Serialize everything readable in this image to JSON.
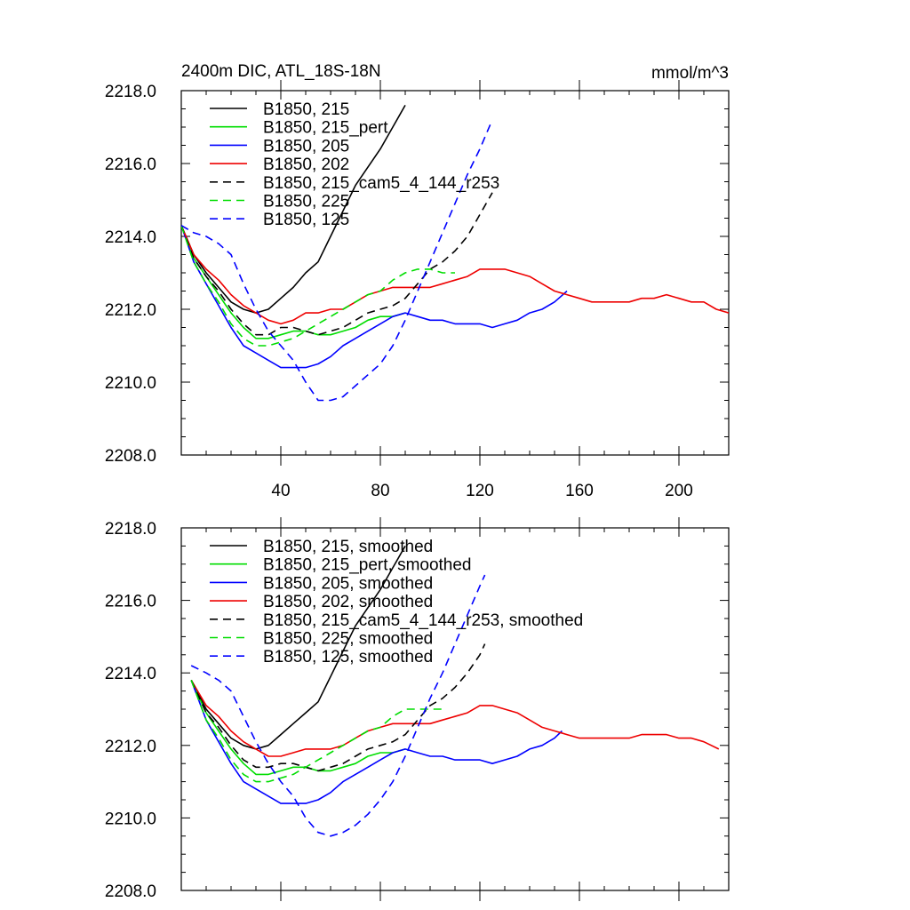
{
  "chart_data": [
    {
      "type": "line",
      "title": "2400m DIC, ATL_18S-18N",
      "units": "mmol/m^3",
      "xlim": [
        0,
        220
      ],
      "ylim": [
        2208,
        2218
      ],
      "x_ticks": [
        "40",
        "80",
        "120",
        "160",
        "200"
      ],
      "y_ticks": [
        "2208.0",
        "2210.0",
        "2212.0",
        "2214.0",
        "2216.0",
        "2218.0"
      ],
      "grid": false,
      "legend_position": "top-left",
      "series": [
        {
          "name": "B1850, 215",
          "color": "#000000",
          "dash": "solid",
          "x": [
            0,
            5,
            10,
            15,
            20,
            25,
            30,
            35,
            40,
            45,
            50,
            55,
            60,
            65,
            70,
            75,
            80,
            85,
            90
          ],
          "y": [
            2214.3,
            2213.5,
            2213.0,
            2212.6,
            2212.2,
            2212.0,
            2211.9,
            2212.0,
            2212.3,
            2212.6,
            2213.0,
            2213.3,
            2214.0,
            2214.7,
            2215.4,
            2215.9,
            2216.4,
            2217.0,
            2217.6
          ]
        },
        {
          "name": "B1850, 215_pert",
          "color": "#00dd00",
          "dash": "solid",
          "x": [
            0,
            5,
            10,
            15,
            20,
            25,
            30,
            35,
            40,
            45,
            50,
            55,
            60,
            65,
            70,
            75,
            80,
            85,
            90
          ],
          "y": [
            2214.3,
            2213.4,
            2212.9,
            2212.4,
            2211.9,
            2211.5,
            2211.2,
            2211.2,
            2211.3,
            2211.4,
            2211.4,
            2211.3,
            2211.3,
            2211.4,
            2211.5,
            2211.7,
            2211.8,
            2211.8,
            2211.9
          ]
        },
        {
          "name": "B1850, 205",
          "color": "#0000ff",
          "dash": "solid",
          "x": [
            0,
            5,
            10,
            15,
            20,
            25,
            30,
            35,
            40,
            45,
            50,
            55,
            60,
            65,
            70,
            75,
            80,
            85,
            90,
            95,
            100,
            105,
            110,
            115,
            120,
            125,
            130,
            135,
            140,
            145,
            150,
            155
          ],
          "y": [
            2214.3,
            2213.3,
            2212.7,
            2212.1,
            2211.5,
            2211.0,
            2210.8,
            2210.6,
            2210.4,
            2210.4,
            2210.4,
            2210.5,
            2210.7,
            2211.0,
            2211.2,
            2211.4,
            2211.6,
            2211.8,
            2211.9,
            2211.8,
            2211.7,
            2211.7,
            2211.6,
            2211.6,
            2211.6,
            2211.5,
            2211.6,
            2211.7,
            2211.9,
            2212.0,
            2212.2,
            2212.5
          ]
        },
        {
          "name": "B1850, 202",
          "color": "#ee0000",
          "dash": "solid",
          "x": [
            0,
            5,
            10,
            15,
            20,
            25,
            30,
            35,
            40,
            45,
            50,
            55,
            60,
            65,
            70,
            75,
            80,
            85,
            90,
            95,
            100,
            105,
            110,
            115,
            120,
            125,
            130,
            135,
            140,
            145,
            150,
            155,
            160,
            165,
            170,
            175,
            180,
            185,
            190,
            195,
            200,
            205,
            210,
            215,
            220
          ],
          "y": [
            2214.3,
            2213.5,
            2213.1,
            2212.8,
            2212.4,
            2212.1,
            2211.9,
            2211.7,
            2211.6,
            2211.7,
            2211.9,
            2211.9,
            2212.0,
            2212.0,
            2212.2,
            2212.4,
            2212.5,
            2212.6,
            2212.6,
            2212.6,
            2212.6,
            2212.7,
            2212.8,
            2212.9,
            2213.1,
            2213.1,
            2213.1,
            2213.0,
            2212.9,
            2212.7,
            2212.5,
            2212.4,
            2212.3,
            2212.2,
            2212.2,
            2212.2,
            2212.2,
            2212.3,
            2212.3,
            2212.4,
            2212.3,
            2212.2,
            2212.2,
            2212.0,
            2211.9
          ]
        },
        {
          "name": "B1850, 215_cam5_4_144_r253",
          "color": "#000000",
          "dash": "dashed",
          "x": [
            0,
            5,
            10,
            15,
            20,
            25,
            30,
            35,
            40,
            45,
            50,
            55,
            60,
            65,
            70,
            75,
            80,
            85,
            90,
            95,
            100,
            105,
            110,
            115,
            120,
            125
          ],
          "y": [
            2214.3,
            2213.4,
            2212.9,
            2212.5,
            2212.0,
            2211.6,
            2211.3,
            2211.3,
            2211.5,
            2211.5,
            2211.4,
            2211.3,
            2211.4,
            2211.5,
            2211.7,
            2211.9,
            2212.0,
            2212.1,
            2212.3,
            2212.7,
            2213.1,
            2213.3,
            2213.6,
            2214.0,
            2214.6,
            2215.2
          ]
        },
        {
          "name": "B1850, 225",
          "color": "#00dd00",
          "dash": "dashed",
          "x": [
            0,
            5,
            10,
            15,
            20,
            25,
            30,
            35,
            40,
            45,
            50,
            55,
            60,
            65,
            70,
            75,
            80,
            85,
            90,
            95,
            100,
            105,
            110
          ],
          "y": [
            2214.3,
            2213.3,
            2212.7,
            2212.2,
            2211.6,
            2211.2,
            2211.0,
            2211.0,
            2211.1,
            2211.2,
            2211.4,
            2211.6,
            2211.8,
            2212.0,
            2212.2,
            2212.4,
            2212.5,
            2212.8,
            2213.0,
            2213.1,
            2213.1,
            2213.0,
            2213.0
          ]
        },
        {
          "name": "B1850, 125",
          "color": "#0000ff",
          "dash": "dashed",
          "x": [
            0,
            5,
            10,
            15,
            20,
            25,
            30,
            35,
            40,
            45,
            50,
            55,
            60,
            65,
            70,
            75,
            80,
            85,
            90,
            95,
            100,
            105,
            110,
            115,
            120,
            125
          ],
          "y": [
            2214.3,
            2214.1,
            2214.0,
            2213.8,
            2213.5,
            2212.7,
            2212.0,
            2211.4,
            2211.0,
            2210.6,
            2210.0,
            2209.5,
            2209.5,
            2209.6,
            2209.9,
            2210.2,
            2210.5,
            2211.0,
            2211.7,
            2212.5,
            2213.3,
            2214.1,
            2214.9,
            2215.7,
            2216.4,
            2217.2
          ]
        }
      ]
    },
    {
      "type": "line",
      "title": "",
      "units": "",
      "xlim": [
        0,
        220
      ],
      "ylim": [
        2208,
        2218
      ],
      "x_ticks": [],
      "y_ticks": [
        "2208.0",
        "2210.0",
        "2212.0",
        "2214.0",
        "2216.0",
        "2218.0"
      ],
      "grid": false,
      "legend_position": "top-left",
      "series": [
        {
          "name": "B1850, 215, smoothed",
          "color": "#000000",
          "dash": "solid",
          "x": [
            4,
            10,
            15,
            20,
            25,
            30,
            35,
            40,
            45,
            50,
            55,
            60,
            65,
            70,
            75,
            80,
            85,
            90
          ],
          "y": [
            2213.8,
            2213.0,
            2212.6,
            2212.2,
            2212.0,
            2211.9,
            2212.0,
            2212.3,
            2212.6,
            2212.9,
            2213.2,
            2213.9,
            2214.6,
            2215.3,
            2215.8,
            2216.3,
            2216.9,
            2217.5
          ]
        },
        {
          "name": "B1850, 215_pert, smoothed",
          "color": "#00dd00",
          "dash": "solid",
          "x": [
            4,
            10,
            15,
            20,
            25,
            30,
            35,
            40,
            45,
            50,
            55,
            60,
            65,
            70,
            75,
            80,
            85,
            90
          ],
          "y": [
            2213.8,
            2212.9,
            2212.4,
            2211.9,
            2211.5,
            2211.2,
            2211.2,
            2211.3,
            2211.4,
            2211.4,
            2211.3,
            2211.3,
            2211.4,
            2211.5,
            2211.7,
            2211.8,
            2211.8,
            2211.9
          ]
        },
        {
          "name": "B1850, 205, smoothed",
          "color": "#0000ff",
          "dash": "solid",
          "x": [
            4,
            10,
            15,
            20,
            25,
            30,
            35,
            40,
            45,
            50,
            55,
            60,
            65,
            70,
            75,
            80,
            85,
            90,
            95,
            100,
            105,
            110,
            115,
            120,
            125,
            130,
            135,
            140,
            145,
            150,
            153
          ],
          "y": [
            2213.8,
            2212.7,
            2212.1,
            2211.5,
            2211.0,
            2210.8,
            2210.6,
            2210.4,
            2210.4,
            2210.4,
            2210.5,
            2210.7,
            2211.0,
            2211.2,
            2211.4,
            2211.6,
            2211.8,
            2211.9,
            2211.8,
            2211.7,
            2211.7,
            2211.6,
            2211.6,
            2211.6,
            2211.5,
            2211.6,
            2211.7,
            2211.9,
            2212.0,
            2212.2,
            2212.4
          ]
        },
        {
          "name": "B1850, 202, smoothed",
          "color": "#ee0000",
          "dash": "solid",
          "x": [
            4,
            10,
            15,
            20,
            25,
            30,
            35,
            40,
            45,
            50,
            55,
            60,
            65,
            70,
            75,
            80,
            85,
            90,
            95,
            100,
            105,
            110,
            115,
            120,
            125,
            130,
            135,
            140,
            145,
            150,
            155,
            160,
            165,
            170,
            175,
            180,
            185,
            190,
            195,
            200,
            205,
            210,
            216
          ],
          "y": [
            2213.8,
            2213.1,
            2212.8,
            2212.4,
            2212.1,
            2211.9,
            2211.7,
            2211.7,
            2211.8,
            2211.9,
            2211.9,
            2211.9,
            2212.0,
            2212.2,
            2212.4,
            2212.5,
            2212.6,
            2212.6,
            2212.6,
            2212.6,
            2212.7,
            2212.8,
            2212.9,
            2213.1,
            2213.1,
            2213.0,
            2212.9,
            2212.7,
            2212.5,
            2212.4,
            2212.3,
            2212.2,
            2212.2,
            2212.2,
            2212.2,
            2212.2,
            2212.3,
            2212.3,
            2212.3,
            2212.2,
            2212.2,
            2212.1,
            2211.9
          ]
        },
        {
          "name": "B1850, 215_cam5_4_144_r253, smoothed",
          "color": "#000000",
          "dash": "dashed",
          "x": [
            4,
            10,
            15,
            20,
            25,
            30,
            35,
            40,
            45,
            50,
            55,
            60,
            65,
            70,
            75,
            80,
            85,
            90,
            95,
            100,
            105,
            110,
            115,
            120,
            122
          ],
          "y": [
            2213.8,
            2212.9,
            2212.5,
            2212.0,
            2211.6,
            2211.4,
            2211.4,
            2211.5,
            2211.5,
            2211.4,
            2211.3,
            2211.4,
            2211.5,
            2211.7,
            2211.9,
            2212.0,
            2212.1,
            2212.3,
            2212.7,
            2213.1,
            2213.3,
            2213.6,
            2214.0,
            2214.5,
            2214.8
          ]
        },
        {
          "name": "B1850, 225, smoothed",
          "color": "#00dd00",
          "dash": "dashed",
          "x": [
            4,
            10,
            15,
            20,
            25,
            30,
            35,
            40,
            45,
            50,
            55,
            60,
            65,
            70,
            75,
            80,
            85,
            90,
            95,
            100,
            105
          ],
          "y": [
            2213.8,
            2212.7,
            2212.2,
            2211.6,
            2211.2,
            2211.0,
            2211.0,
            2211.1,
            2211.2,
            2211.4,
            2211.6,
            2211.8,
            2212.0,
            2212.2,
            2212.4,
            2212.5,
            2212.8,
            2213.0,
            2213.0,
            2213.0,
            2213.0
          ]
        },
        {
          "name": "B1850, 125, smoothed",
          "color": "#0000ff",
          "dash": "dashed",
          "x": [
            4,
            10,
            15,
            20,
            25,
            30,
            35,
            40,
            45,
            50,
            55,
            60,
            65,
            70,
            75,
            80,
            85,
            90,
            95,
            100,
            105,
            110,
            115,
            120,
            122
          ],
          "y": [
            2214.2,
            2214.0,
            2213.8,
            2213.5,
            2212.8,
            2212.1,
            2211.5,
            2211.0,
            2210.6,
            2210.0,
            2209.6,
            2209.5,
            2209.6,
            2209.8,
            2210.1,
            2210.5,
            2211.0,
            2211.7,
            2212.5,
            2213.3,
            2214.0,
            2214.8,
            2215.6,
            2216.4,
            2216.7
          ]
        }
      ]
    }
  ]
}
